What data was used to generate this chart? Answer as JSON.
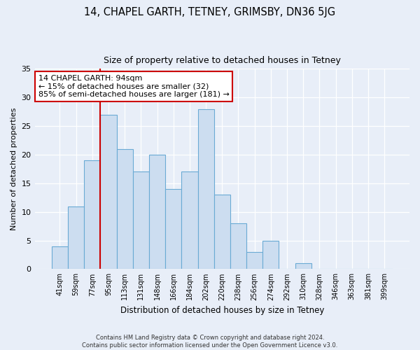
{
  "title": "14, CHAPEL GARTH, TETNEY, GRIMSBY, DN36 5JG",
  "subtitle": "Size of property relative to detached houses in Tetney",
  "xlabel": "Distribution of detached houses by size in Tetney",
  "ylabel": "Number of detached properties",
  "categories": [
    "41sqm",
    "59sqm",
    "77sqm",
    "95sqm",
    "113sqm",
    "131sqm",
    "148sqm",
    "166sqm",
    "184sqm",
    "202sqm",
    "220sqm",
    "238sqm",
    "256sqm",
    "274sqm",
    "292sqm",
    "310sqm",
    "328sqm",
    "346sqm",
    "363sqm",
    "381sqm",
    "399sqm"
  ],
  "values": [
    4,
    11,
    19,
    27,
    21,
    17,
    20,
    14,
    17,
    28,
    13,
    8,
    3,
    5,
    0,
    1,
    0,
    0,
    0,
    0,
    0
  ],
  "bar_color": "#ccddf0",
  "bar_edge_color": "#6aaad4",
  "vline_color": "#cc0000",
  "vline_index": 3,
  "ylim": [
    0,
    35
  ],
  "yticks": [
    0,
    5,
    10,
    15,
    20,
    25,
    30,
    35
  ],
  "annotation_line1": "14 CHAPEL GARTH: 94sqm",
  "annotation_line2": "← 15% of detached houses are smaller (32)",
  "annotation_line3": "85% of semi-detached houses are larger (181) →",
  "annotation_box_color": "#ffffff",
  "annotation_box_edge_color": "#cc0000",
  "footer_text": "Contains HM Land Registry data © Crown copyright and database right 2024.\nContains public sector information licensed under the Open Government Licence v3.0.",
  "background_color": "#e8eef8",
  "grid_color": "#ffffff",
  "title_fontsize": 10.5,
  "subtitle_fontsize": 9,
  "ylabel_fontsize": 8,
  "xlabel_fontsize": 8.5,
  "tick_fontsize": 7,
  "annotation_fontsize": 8,
  "footer_fontsize": 6
}
